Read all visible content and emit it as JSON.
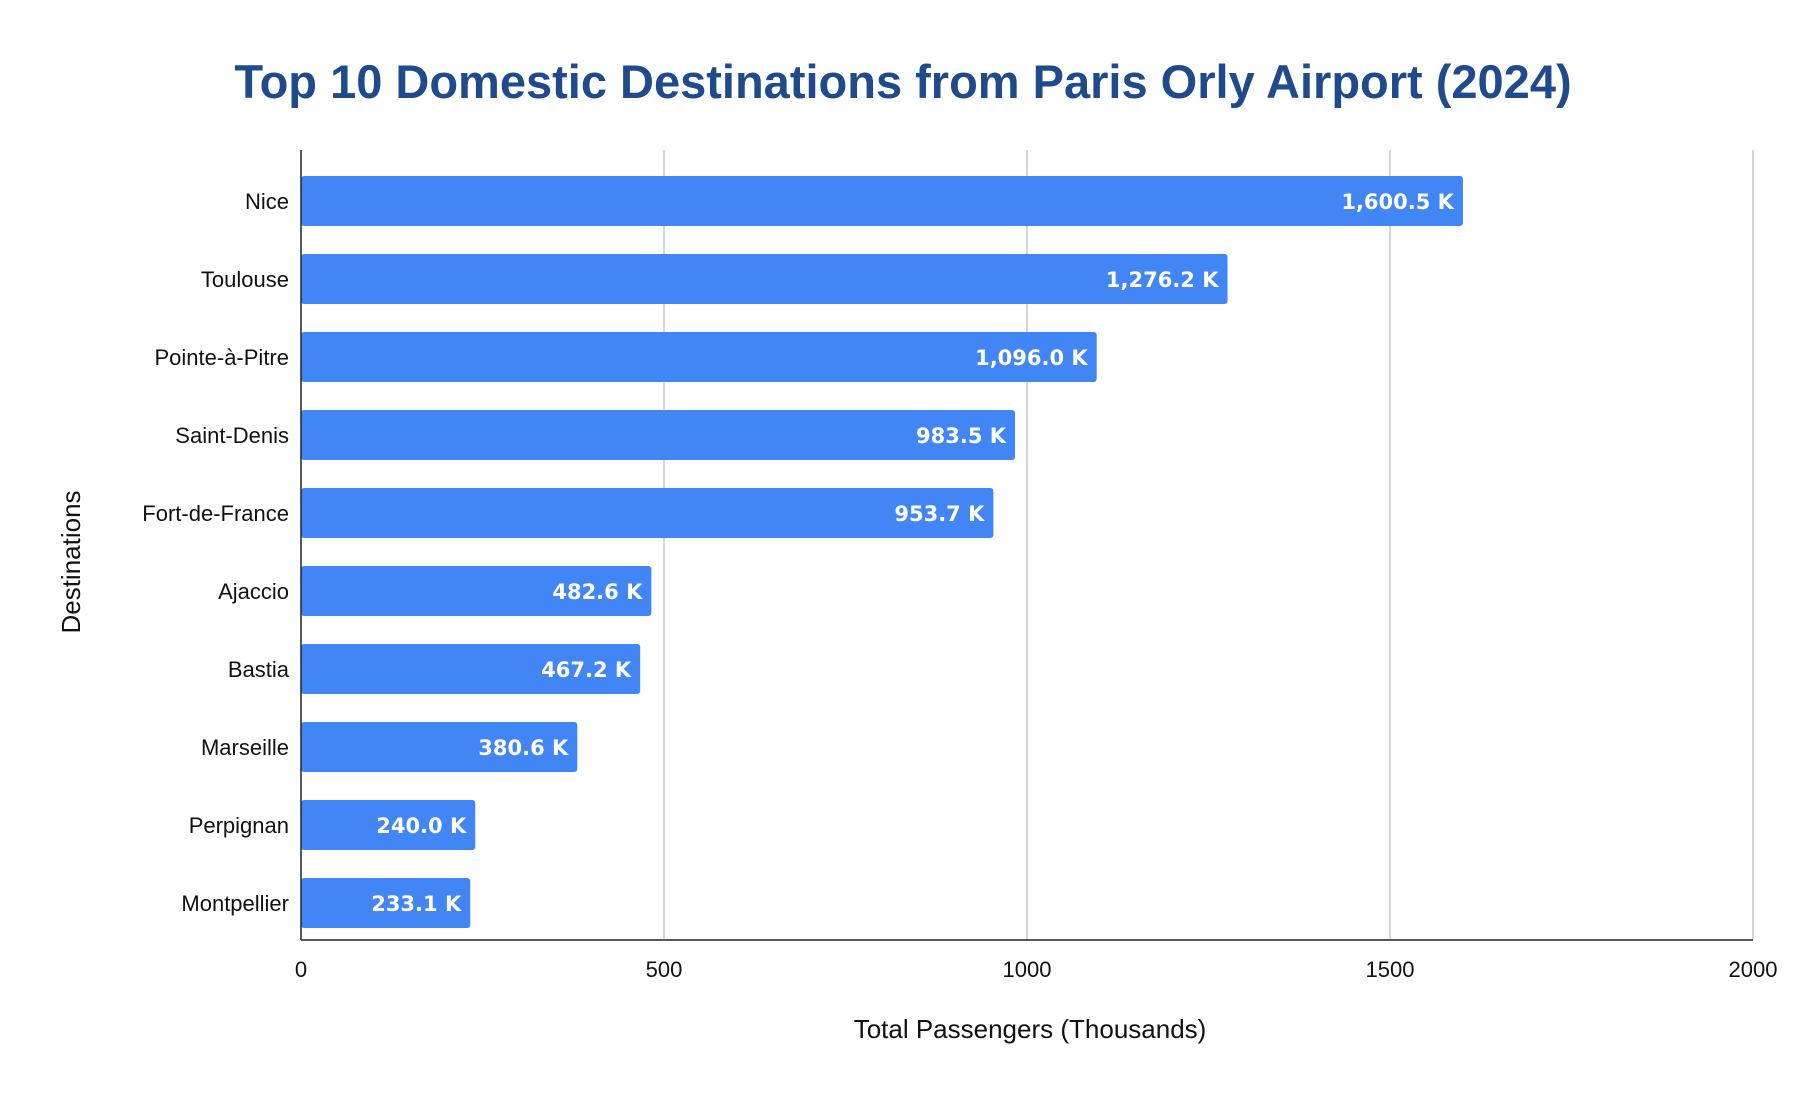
{
  "chart_data": {
    "type": "bar",
    "orientation": "horizontal",
    "title": "Top 10 Domestic Destinations from Paris Orly Airport (2024)",
    "xlabel": "Total Passengers (Thousands)",
    "ylabel": "Destinations",
    "categories": [
      "Nice",
      "Toulouse",
      "Pointe-à-Pitre",
      "Saint-Denis",
      "Fort-de-France",
      "Ajaccio",
      "Bastia",
      "Marseille",
      "Perpignan",
      "Montpellier"
    ],
    "values": [
      1600.5,
      1276.2,
      1096.0,
      983.5,
      953.7,
      482.6,
      467.2,
      380.6,
      240.0,
      233.1
    ],
    "data_labels": [
      "1,600.5 K",
      "1,276.2 K",
      "1,096.0 K",
      "983.5 K",
      "953.7 K",
      "482.6 K",
      "467.2 K",
      "380.6 K",
      "240.0 K",
      "233.1 K"
    ],
    "xlim": [
      0,
      2000
    ],
    "xticks": [
      "0",
      "500",
      "1000",
      "1500",
      "2000"
    ],
    "xtick_values": [
      0,
      500,
      1000,
      1500,
      2000
    ],
    "grid": true,
    "bar_color": "#4285f4",
    "title_color": "#1f4a8c"
  }
}
